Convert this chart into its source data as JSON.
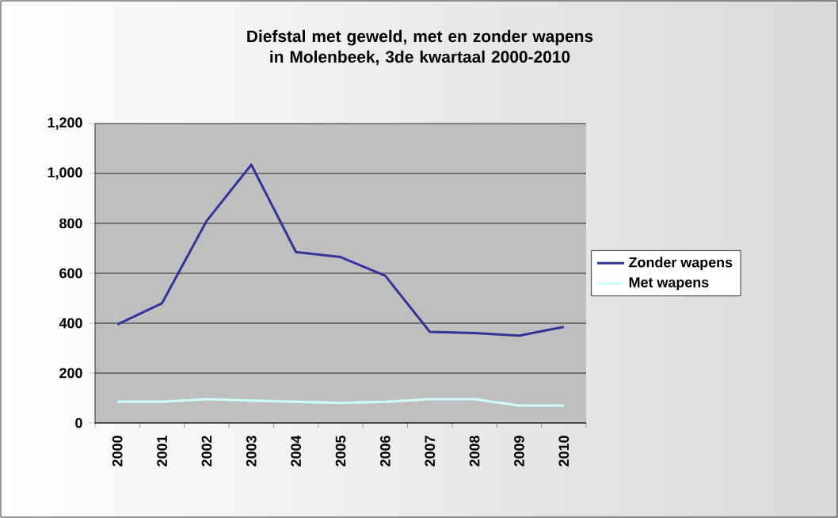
{
  "chart_data": {
    "type": "line",
    "title": "Diefstal met geweld, met en zonder wapens in Molenbeek, 3de kwartaal 2000-2010",
    "categories": [
      "2000",
      "2001",
      "2002",
      "2003",
      "2004",
      "2005",
      "2006",
      "2007",
      "2008",
      "2009",
      "2010"
    ],
    "series": [
      {
        "name": "Zonder wapens",
        "color": "#333399",
        "values": [
          395,
          480,
          810,
          1035,
          685,
          665,
          590,
          365,
          360,
          350,
          385
        ]
      },
      {
        "name": "Met wapens",
        "color": "#ccffff",
        "values": [
          85,
          85,
          95,
          90,
          85,
          80,
          85,
          95,
          95,
          70,
          70
        ]
      }
    ],
    "ylim": [
      0,
      1200
    ],
    "yticks": [
      {
        "value": 0,
        "label": "0"
      },
      {
        "value": 200,
        "label": "200"
      },
      {
        "value": 400,
        "label": "400"
      },
      {
        "value": 600,
        "label": "600"
      },
      {
        "value": 800,
        "label": "800"
      },
      {
        "value": 1000,
        "label": "1,000"
      },
      {
        "value": 1200,
        "label": "1,200"
      }
    ],
    "grid": "y",
    "legend": "right",
    "marker": "none",
    "line_style": "solid"
  }
}
